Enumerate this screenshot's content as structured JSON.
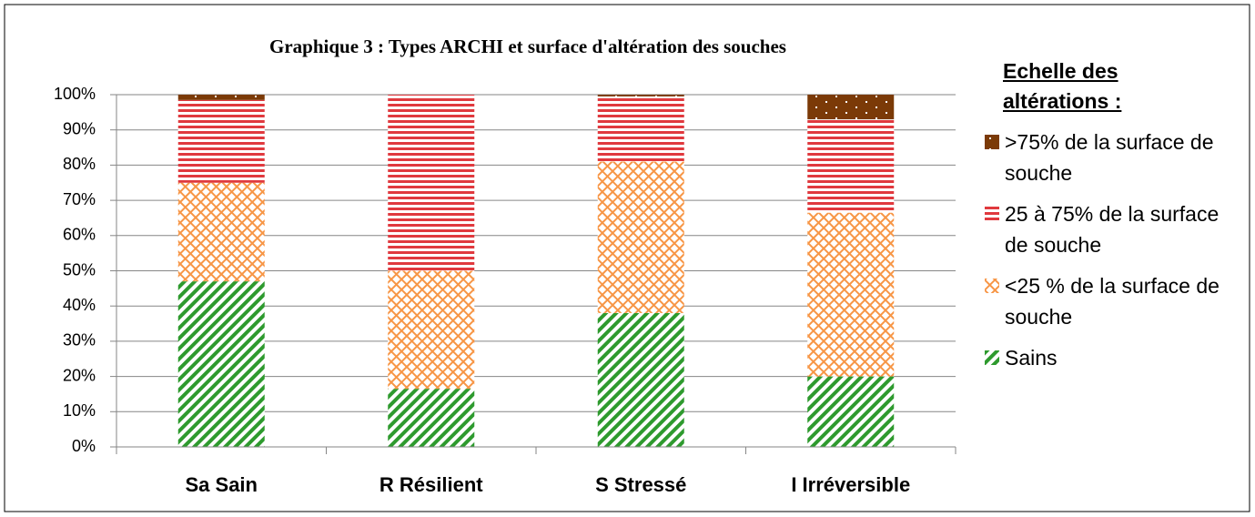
{
  "chart_data": {
    "type": "stacked_bar",
    "title": "Graphique 3 : Types ARCHI et surface d'altération des souches",
    "legend_title": "Echelle des altérations :",
    "categories": [
      "Sa Sain",
      "R Résilient",
      "S Stressé",
      "I Irréversible"
    ],
    "series": [
      {
        "name": "Sains",
        "color": "#2e9a2e",
        "pattern": "diagonal",
        "values": [
          47,
          16.5,
          38,
          20
        ]
      },
      {
        "name": "<25 % de la surface de souche",
        "color": "#f79646",
        "pattern": "crosshatch",
        "values": [
          28,
          33.5,
          43,
          46.5
        ]
      },
      {
        "name": "25 à 75% de la surface de souche",
        "color": "#e0393e",
        "pattern": "horizontal",
        "values": [
          23.5,
          50,
          18.5,
          26.5
        ]
      },
      {
        "name": ">75% de la surface de souche",
        "color": "#7b3a07",
        "pattern": "dots",
        "values": [
          1.5,
          0,
          0.5,
          7
        ]
      }
    ],
    "ylim": [
      0,
      100
    ],
    "yticks": [
      {
        "value": 0,
        "label": "0%"
      },
      {
        "value": 10,
        "label": "10%"
      },
      {
        "value": 20,
        "label": "20%"
      },
      {
        "value": 30,
        "label": "30%"
      },
      {
        "value": 40,
        "label": "40%"
      },
      {
        "value": 50,
        "label": "50%"
      },
      {
        "value": 60,
        "label": "60%"
      },
      {
        "value": 70,
        "label": "70%"
      },
      {
        "value": 80,
        "label": "80%"
      },
      {
        "value": 90,
        "label": "90%"
      },
      {
        "value": 100,
        "label": "100%"
      }
    ],
    "grid": true,
    "legend": "right"
  }
}
